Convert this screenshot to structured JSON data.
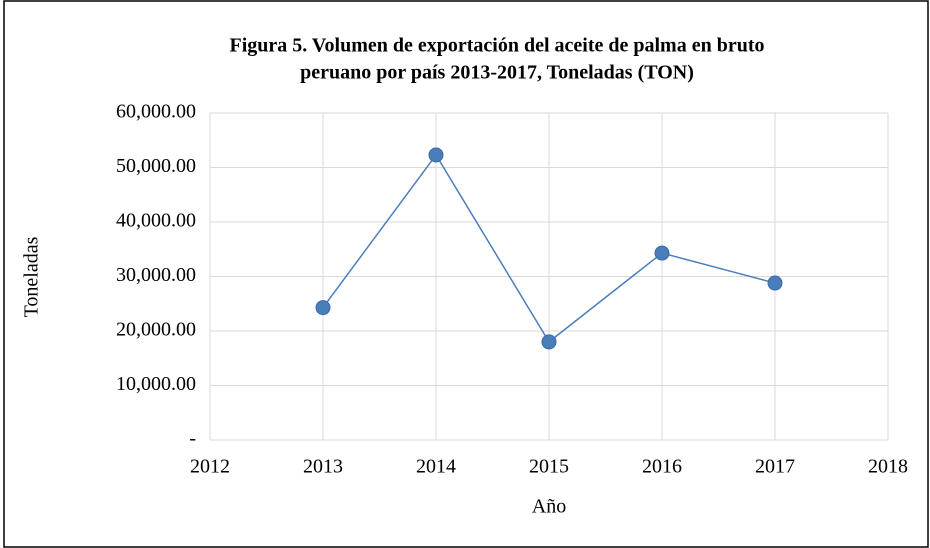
{
  "chart_data": {
    "type": "line",
    "title": [
      "Figura 5. Volumen de exportación del aceite de palma en bruto",
      "peruano por país 2013-2017, Toneladas (TON)"
    ],
    "x_label": "Año",
    "y_label": "Toneladas",
    "x": [
      2013,
      2014,
      2015,
      2016,
      2017
    ],
    "series": [
      {
        "name": "Toneladas",
        "color": "#4a7ebb",
        "values": [
          24300,
          52300,
          18000,
          34300,
          28800
        ]
      }
    ],
    "xlim": [
      2012,
      2018
    ],
    "xticks": [
      2012,
      2013,
      2014,
      2015,
      2016,
      2017,
      2018
    ],
    "ylim": [
      0,
      60000
    ],
    "yticks": [
      {
        "value": 0,
        "label": "-"
      },
      {
        "value": 10000,
        "label": "10,000.00"
      },
      {
        "value": 20000,
        "label": "20,000.00"
      },
      {
        "value": 30000,
        "label": "30,000.00"
      },
      {
        "value": 40000,
        "label": "40,000.00"
      },
      {
        "value": 50000,
        "label": "50,000.00"
      },
      {
        "value": 60000,
        "label": "60,000.00"
      }
    ],
    "grid": true,
    "legend": false
  }
}
